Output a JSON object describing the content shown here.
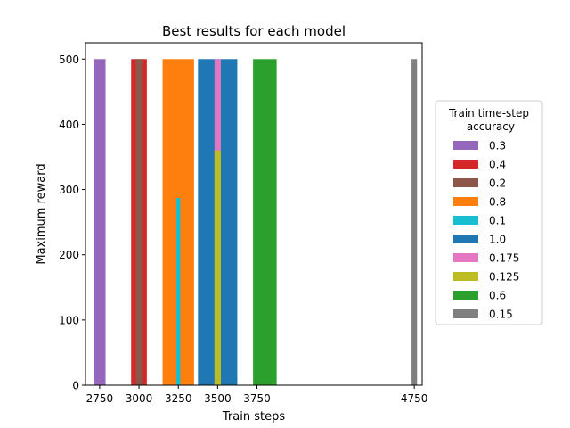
{
  "chart_data": {
    "type": "bar",
    "title": "Best results for each model",
    "xlabel": "Train steps",
    "ylabel": "Maximum reward",
    "xlim": [
      2660,
      4800
    ],
    "ylim": [
      0,
      525
    ],
    "xticks": [
      2750,
      3000,
      3250,
      3500,
      3750,
      4750
    ],
    "yticks": [
      0,
      100,
      200,
      300,
      400,
      500
    ],
    "grid": false,
    "legend": {
      "title": "Train time-step\n accuracy",
      "placement": "center-right-outside"
    },
    "series": [
      {
        "name": "0.3",
        "color": "#9467bd",
        "bars": [
          {
            "x": 2750,
            "width": 75,
            "value": 500
          }
        ]
      },
      {
        "name": "0.4",
        "color": "#d62728",
        "bars": [
          {
            "x": 3000,
            "width": 100,
            "value": 500
          }
        ]
      },
      {
        "name": "0.2",
        "color": "#8c564b",
        "bars": [
          {
            "x": 3000,
            "width": 40,
            "value": 500
          }
        ]
      },
      {
        "name": "0.8",
        "color": "#ff7f0e",
        "bars": [
          {
            "x": 3250,
            "width": 200,
            "value": 500
          }
        ]
      },
      {
        "name": "0.1",
        "color": "#17becf",
        "bars": [
          {
            "x": 3250,
            "width": 25,
            "value": 287
          }
        ]
      },
      {
        "name": "1.0",
        "color": "#1f77b4",
        "bars": [
          {
            "x": 3500,
            "width": 250,
            "value": 500
          }
        ]
      },
      {
        "name": "0.175",
        "color": "#e377c2",
        "bars": [
          {
            "x": 3500,
            "width": 40,
            "value": 500
          }
        ]
      },
      {
        "name": "0.125",
        "color": "#bcbd22",
        "bars": [
          {
            "x": 3500,
            "width": 40,
            "value": 360
          }
        ]
      },
      {
        "name": "0.6",
        "color": "#2ca02c",
        "bars": [
          {
            "x": 3800,
            "width": 150,
            "value": 500
          }
        ]
      },
      {
        "name": "0.15",
        "color": "#7f7f7f",
        "bars": [
          {
            "x": 4750,
            "width": 35,
            "value": 500
          }
        ]
      }
    ]
  }
}
